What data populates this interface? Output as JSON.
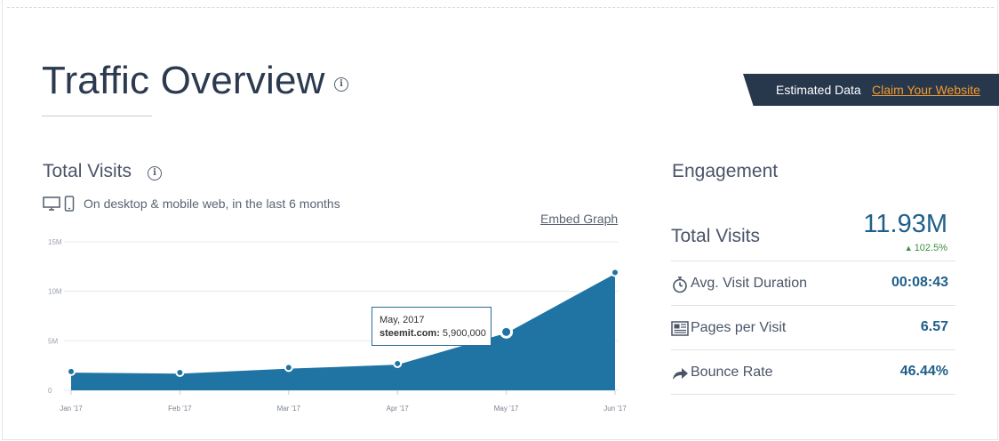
{
  "header": {
    "title": "Traffic Overview",
    "info_icon": "info-icon"
  },
  "banner": {
    "label": "Estimated Data",
    "link": "Claim Your Website",
    "link_color": "#f39a2e",
    "background": "#27374c"
  },
  "total_visits": {
    "title": "Total Visits",
    "device_icons": [
      "desktop-icon",
      "mobile-icon"
    ],
    "description": "On desktop & mobile web, in the last 6 months",
    "embed_label": "Embed Graph"
  },
  "tooltip": {
    "date": "May, 2017",
    "label": "steemit.com:",
    "value": "5,900,000"
  },
  "chart_data": {
    "type": "area",
    "categories": [
      "Jan '17",
      "Feb '17",
      "Mar '17",
      "Apr '17",
      "May '17",
      "Jun '17"
    ],
    "values": [
      1900000,
      1800000,
      2300000,
      2700000,
      5900000,
      11900000
    ],
    "yticks": [
      "15M",
      "10M",
      "5M",
      "0"
    ],
    "ylim": [
      0,
      15000000
    ],
    "grid": true,
    "color": "#1f74a3",
    "highlighted_index": 4
  },
  "engagement": {
    "title": "Engagement",
    "total_visits_label": "Total Visits",
    "total_visits_value": "11.93M",
    "total_visits_change": "102.5%",
    "change_color": "#3b8f3b",
    "metrics": [
      {
        "icon": "stopwatch-icon",
        "label": "Avg. Visit Duration",
        "value": "00:08:43"
      },
      {
        "icon": "pages-icon",
        "label": "Pages per Visit",
        "value": "6.57"
      },
      {
        "icon": "bounce-arrow-icon",
        "label": "Bounce Rate",
        "value": "46.44%"
      }
    ]
  }
}
